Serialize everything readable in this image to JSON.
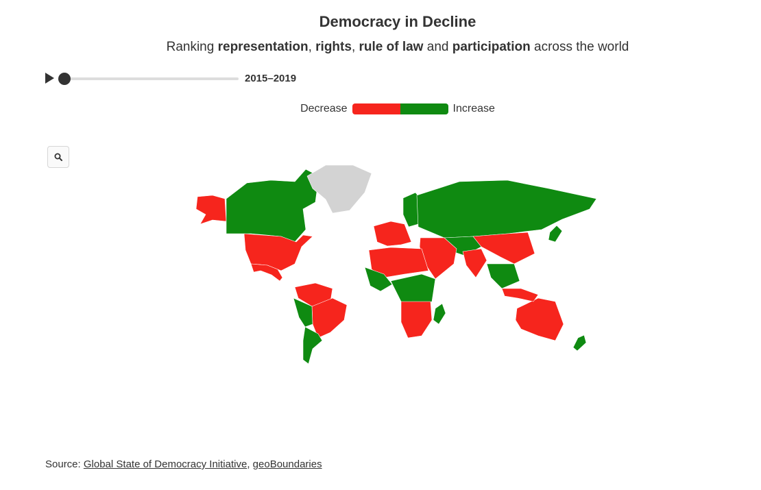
{
  "header": {
    "title": "Democracy in Decline",
    "subtitle": {
      "prefix": "Ranking ",
      "term1": "representation",
      "sep1": ", ",
      "term2": "rights",
      "sep2": ", ",
      "term3": "rule of law",
      "sep3": " and ",
      "term4": "participation",
      "suffix": " across the world"
    }
  },
  "player": {
    "period": "2015–2019",
    "play_icon": "play-icon",
    "progress": 0
  },
  "legend": {
    "low_label": "Decrease",
    "high_label": "Increase",
    "low_color": "#f6251d",
    "high_color": "#0f8a11",
    "nodata_color": "#d3d3d3"
  },
  "zoom": {
    "icon": "search-icon"
  },
  "map": {
    "regions": [
      {
        "name": "Alaska",
        "status": "decrease"
      },
      {
        "name": "Canada",
        "status": "increase"
      },
      {
        "name": "United States",
        "status": "decrease"
      },
      {
        "name": "Mexico",
        "status": "decrease"
      },
      {
        "name": "Greenland",
        "status": "nodata"
      },
      {
        "name": "South America North",
        "status": "decrease"
      },
      {
        "name": "Brazil",
        "status": "decrease"
      },
      {
        "name": "Andean West",
        "status": "increase"
      },
      {
        "name": "Southern Cone",
        "status": "increase"
      },
      {
        "name": "Western Europe",
        "status": "decrease"
      },
      {
        "name": "Scandinavia",
        "status": "increase"
      },
      {
        "name": "Russia",
        "status": "increase"
      },
      {
        "name": "Central Asia",
        "status": "increase"
      },
      {
        "name": "China",
        "status": "decrease"
      },
      {
        "name": "India",
        "status": "decrease"
      },
      {
        "name": "Southeast Asia",
        "status": "increase"
      },
      {
        "name": "Middle East",
        "status": "decrease"
      },
      {
        "name": "North Africa",
        "status": "decrease"
      },
      {
        "name": "West Africa",
        "status": "increase"
      },
      {
        "name": "Central Africa",
        "status": "increase"
      },
      {
        "name": "Southern Africa",
        "status": "decrease"
      },
      {
        "name": "Madagascar",
        "status": "increase"
      },
      {
        "name": "Australia",
        "status": "decrease"
      },
      {
        "name": "New Zealand",
        "status": "increase"
      },
      {
        "name": "Japan",
        "status": "increase"
      },
      {
        "name": "Indonesia",
        "status": "decrease"
      }
    ]
  },
  "footer": {
    "prefix": "Source: ",
    "link1": "Global State of Democracy Initiative",
    "sep": ", ",
    "link2": "geoBoundaries"
  }
}
